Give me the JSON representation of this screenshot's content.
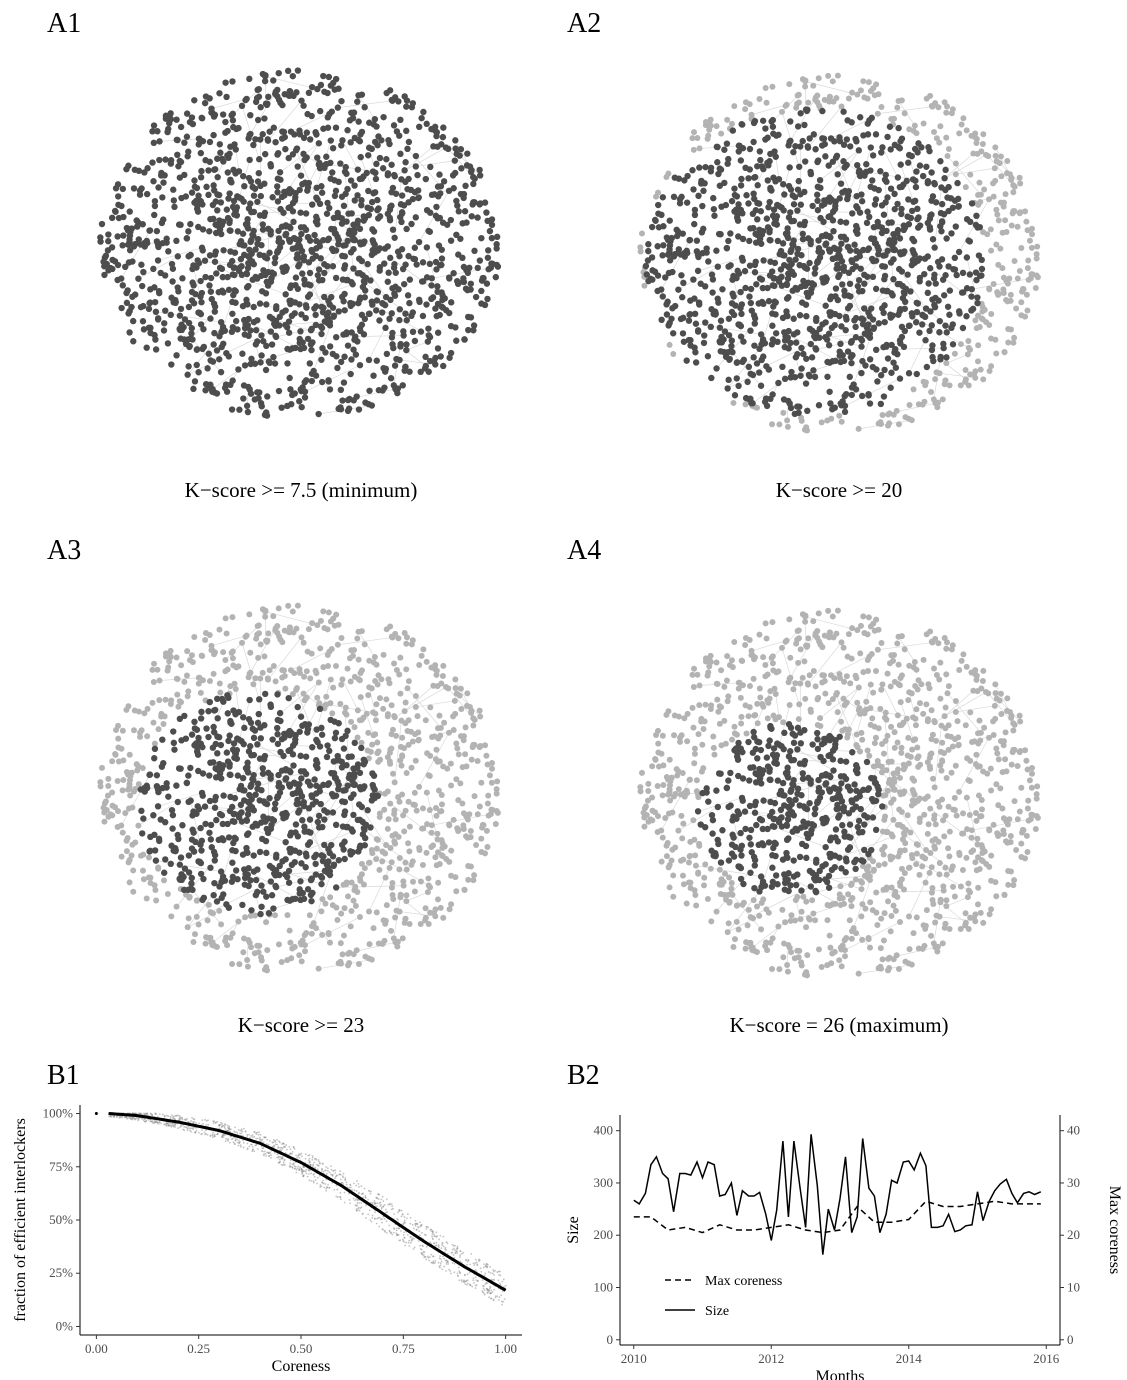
{
  "panels": {
    "a1": "A1",
    "a2": "A2",
    "a3": "A3",
    "a4": "A4",
    "b1": "B1",
    "b2": "B2"
  },
  "captions": {
    "a1": "K−score >= 7.5 (minimum)",
    "a2": "K−score >= 20",
    "a3": "K−score >= 23",
    "a4": "K−score  = 26 (maximum)"
  },
  "colors": {
    "highlighted_node": "#4d4d4d",
    "other_node": "#b3b3b3",
    "edge": "#d9d9d9",
    "line": "#000000"
  },
  "chart_data": [
    {
      "id": "A1",
      "type": "network",
      "caption": "K−score >= 7.5 (minimum)",
      "highlighted_fraction": 1.0
    },
    {
      "id": "A2",
      "type": "network",
      "caption": "K−score >= 20",
      "highlighted_fraction": 0.6
    },
    {
      "id": "A3",
      "type": "network",
      "caption": "K−score >= 23",
      "highlighted_fraction": 0.3
    },
    {
      "id": "A4",
      "type": "network",
      "caption": "K−score  = 26 (maximum)",
      "highlighted_fraction": 0.18
    },
    {
      "id": "B1",
      "type": "scatter",
      "xlabel": "Coreness",
      "ylabel": "fraction of efficient interlockers",
      "xlim": [
        0,
        1
      ],
      "ylim": [
        0,
        1
      ],
      "xticks": [
        "0.00",
        "0.25",
        "0.50",
        "0.75",
        "1.00"
      ],
      "yticks": [
        "0%",
        "25%",
        "50%",
        "75%",
        "100%"
      ],
      "fit_line": {
        "x": [
          0.03,
          0.1,
          0.2,
          0.3,
          0.4,
          0.5,
          0.6,
          0.7,
          0.8,
          0.9,
          1.0
        ],
        "y": [
          1.0,
          0.99,
          0.96,
          0.92,
          0.86,
          0.77,
          0.66,
          0.53,
          0.4,
          0.28,
          0.17
        ]
      },
      "scatter_spread": 0.08
    },
    {
      "id": "B2",
      "type": "line",
      "xlabel": "Months",
      "ylabel": "Size",
      "y2label": "Max coreness",
      "xlim": [
        2010,
        2016
      ],
      "ylim": [
        0,
        420
      ],
      "y2lim": [
        0,
        42
      ],
      "xticks": [
        "2010",
        "2012",
        "2014",
        "2016"
      ],
      "yticks": [
        "0",
        "100",
        "200",
        "300",
        "400"
      ],
      "y2ticks": [
        "0",
        "10",
        "20",
        "30",
        "40"
      ],
      "legend": [
        "Max coreness",
        "Size"
      ],
      "series": [
        {
          "name": "Size",
          "style": "solid",
          "axis": "left",
          "x": [
            2010.0,
            2010.08,
            2010.17,
            2010.25,
            2010.33,
            2010.42,
            2010.5,
            2010.58,
            2010.67,
            2010.75,
            2010.83,
            2010.92,
            2011.0,
            2011.08,
            2011.17,
            2011.25,
            2011.33,
            2011.42,
            2011.5,
            2011.58,
            2011.67,
            2011.75,
            2011.83,
            2011.92,
            2012.0,
            2012.08,
            2012.17,
            2012.25,
            2012.33,
            2012.42,
            2012.5,
            2012.58,
            2012.67,
            2012.75,
            2012.83,
            2012.92,
            2013.0,
            2013.08,
            2013.17,
            2013.25,
            2013.33,
            2013.42,
            2013.5,
            2013.58,
            2013.67,
            2013.75,
            2013.83,
            2013.92,
            2014.0,
            2014.08,
            2014.17,
            2014.25,
            2014.33,
            2014.42,
            2014.5,
            2014.58,
            2014.67,
            2014.75,
            2014.83,
            2014.92,
            2015.0,
            2015.08,
            2015.17,
            2015.25,
            2015.33,
            2015.42,
            2015.5,
            2015.58,
            2015.67,
            2015.75,
            2015.83,
            2015.92
          ],
          "values": [
            267,
            260,
            280,
            335,
            350,
            318,
            308,
            245,
            318,
            318,
            315,
            340,
            310,
            340,
            335,
            275,
            278,
            300,
            238,
            285,
            275,
            275,
            282,
            240,
            190,
            248,
            380,
            235,
            380,
            290,
            215,
            393,
            295,
            163,
            250,
            210,
            270,
            350,
            205,
            235,
            385,
            290,
            275,
            205,
            240,
            305,
            300,
            340,
            342,
            325,
            357,
            333,
            215,
            215,
            218,
            240,
            207,
            210,
            218,
            220,
            283,
            228,
            265,
            285,
            298,
            307,
            280,
            262,
            280,
            283,
            278,
            283
          ],
          "note": "approximate"
        },
        {
          "name": "Max coreness",
          "style": "dashed",
          "axis": "right",
          "x": [
            2010.0,
            2010.25,
            2010.5,
            2010.75,
            2011.0,
            2011.25,
            2011.5,
            2011.75,
            2012.0,
            2012.25,
            2012.5,
            2012.75,
            2013.0,
            2013.25,
            2013.5,
            2013.75,
            2014.0,
            2014.25,
            2014.5,
            2014.75,
            2015.0,
            2015.25,
            2015.5,
            2015.75,
            2015.92
          ],
          "values": [
            23.5,
            23.5,
            21.0,
            21.5,
            20.5,
            22.0,
            21.0,
            21.0,
            21.5,
            22.0,
            21.0,
            20.5,
            21.0,
            25.5,
            22.5,
            22.5,
            23.0,
            26.5,
            25.5,
            25.5,
            26.0,
            26.5,
            26.0,
            26.0,
            26.0
          ]
        }
      ]
    }
  ]
}
